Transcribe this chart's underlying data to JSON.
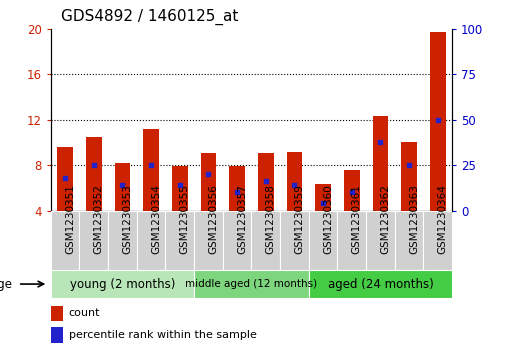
{
  "title": "GDS4892 / 1460125_at",
  "samples": [
    "GSM1230351",
    "GSM1230352",
    "GSM1230353",
    "GSM1230354",
    "GSM1230355",
    "GSM1230356",
    "GSM1230357",
    "GSM1230358",
    "GSM1230359",
    "GSM1230360",
    "GSM1230361",
    "GSM1230362",
    "GSM1230363",
    "GSM1230364"
  ],
  "count_values": [
    9.6,
    10.5,
    8.2,
    11.2,
    7.9,
    9.1,
    7.9,
    9.1,
    9.2,
    6.3,
    7.6,
    12.3,
    10.0,
    19.7
  ],
  "percentile_values": [
    18,
    25,
    14,
    25,
    14,
    20,
    10,
    16,
    14,
    4,
    10,
    38,
    25,
    50
  ],
  "ylim_left": [
    4,
    20
  ],
  "ylim_right": [
    0,
    100
  ],
  "yticks_left": [
    4,
    8,
    12,
    16,
    20
  ],
  "yticks_right": [
    0,
    25,
    50,
    75,
    100
  ],
  "bar_color": "#cc2200",
  "dot_color": "#2222cc",
  "bar_bottom": 4,
  "groups": [
    {
      "label": "young (2 months)",
      "start": 0,
      "end": 5
    },
    {
      "label": "middle aged (12 months)",
      "start": 5,
      "end": 9
    },
    {
      "label": "aged (24 months)",
      "start": 9,
      "end": 14
    }
  ],
  "group_colors": [
    "#b8e6b8",
    "#7dd67d",
    "#44cc44"
  ],
  "title_fontsize": 11,
  "tick_label_fontsize": 7.5,
  "axis_tick_color_left": "#cc2200",
  "axis_tick_color_right": "#0000cc",
  "legend_count_label": "count",
  "legend_percentile_label": "percentile rank within the sample",
  "age_label": "age",
  "bar_width": 0.55,
  "sample_cell_color": "#d0d0d0",
  "sample_cell_edge": "#ffffff"
}
